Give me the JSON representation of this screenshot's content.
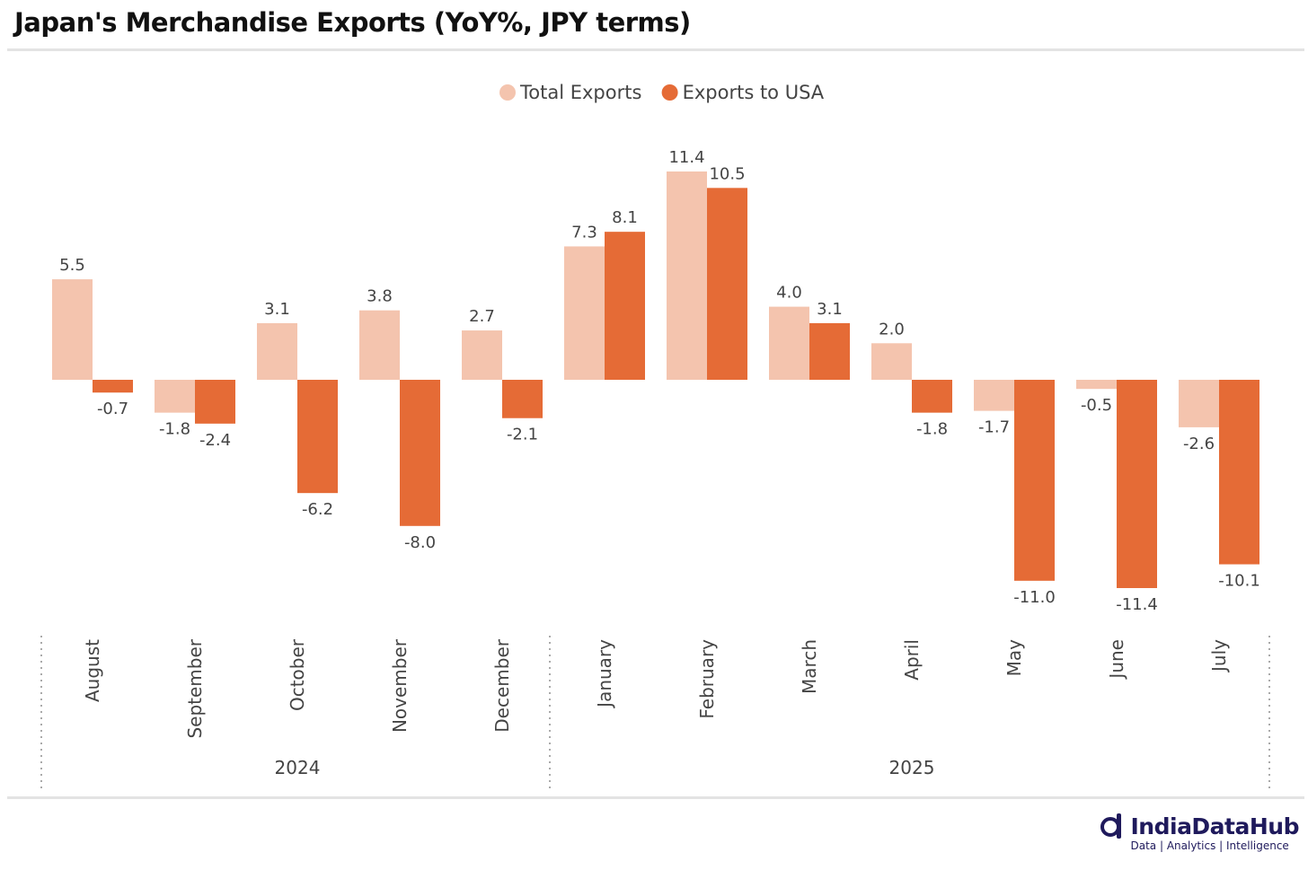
{
  "chart_data": {
    "type": "bar",
    "title": "Japan's Merchandise Exports (YoY%, JPY terms)",
    "categories": [
      "August",
      "September",
      "October",
      "November",
      "December",
      "January",
      "February",
      "March",
      "April",
      "May",
      "June",
      "July"
    ],
    "year_groups": [
      {
        "label": "2024",
        "count": 5
      },
      {
        "label": "2025",
        "count": 7
      }
    ],
    "series": [
      {
        "name": "Total Exports",
        "color": "#F4C4AE",
        "values": [
          5.5,
          -1.8,
          3.1,
          3.8,
          2.7,
          7.3,
          11.4,
          4.0,
          2.0,
          -1.7,
          -0.5,
          -2.6
        ]
      },
      {
        "name": "Exports to USA",
        "color": "#E56B36",
        "values": [
          -0.7,
          -2.4,
          -6.2,
          -8.0,
          -2.1,
          8.1,
          10.5,
          3.1,
          -1.8,
          -11.0,
          -11.4,
          -10.1
        ]
      }
    ],
    "xlabel": "",
    "ylabel": "",
    "ylim": [
      -12,
      12
    ],
    "grid": false,
    "legend": "top-center"
  },
  "branding": {
    "name": "IndiaDataHub",
    "tagline": "Data | Analytics | Intelligence"
  }
}
